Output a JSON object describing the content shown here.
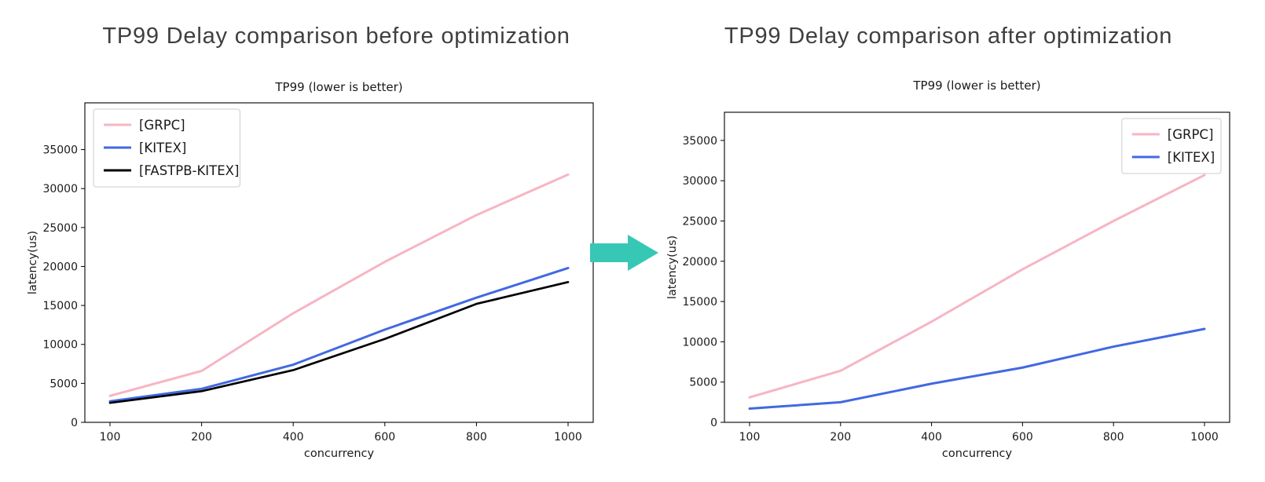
{
  "page": {
    "background": "#ffffff"
  },
  "arrow": {
    "color": "#37C8B5"
  },
  "chart_data": [
    {
      "type": "line",
      "headline": "TP99 Delay comparison before optimization",
      "title": "TP99 (lower is better)",
      "xlabel": "concurrency",
      "ylabel": "latency(us)",
      "categories": [
        100,
        200,
        400,
        600,
        800,
        1000
      ],
      "yticks": [
        0,
        5000,
        10000,
        15000,
        20000,
        25000,
        30000,
        35000
      ],
      "ylim": [
        0,
        41000
      ],
      "grid": false,
      "legend_position": "upper-left",
      "series": [
        {
          "name": "[GRPC]",
          "color": "#F7B5C4",
          "values": [
            3400,
            6600,
            14000,
            20600,
            26600,
            31800
          ]
        },
        {
          "name": "[KITEX]",
          "color": "#4169E1",
          "values": [
            2700,
            4300,
            7400,
            11900,
            16000,
            19800
          ]
        },
        {
          "name": "[FASTPB-KITEX]",
          "color": "#000000",
          "values": [
            2500,
            4000,
            6700,
            10700,
            15200,
            18000
          ]
        }
      ]
    },
    {
      "type": "line",
      "headline": "TP99 Delay comparison after optimization",
      "title": "TP99 (lower is better)",
      "xlabel": "concurrency",
      "ylabel": "latency(us)",
      "categories": [
        100,
        200,
        400,
        600,
        800,
        1000
      ],
      "yticks": [
        0,
        5000,
        10000,
        15000,
        20000,
        25000,
        30000,
        35000
      ],
      "ylim": [
        0,
        38500
      ],
      "grid": false,
      "legend_position": "upper-right",
      "series": [
        {
          "name": "[GRPC]",
          "color": "#F7B5C4",
          "values": [
            3100,
            6400,
            12500,
            19000,
            25000,
            30700
          ]
        },
        {
          "name": "[KITEX]",
          "color": "#4169E1",
          "values": [
            1700,
            2500,
            4800,
            6800,
            9400,
            11600
          ]
        }
      ]
    }
  ]
}
